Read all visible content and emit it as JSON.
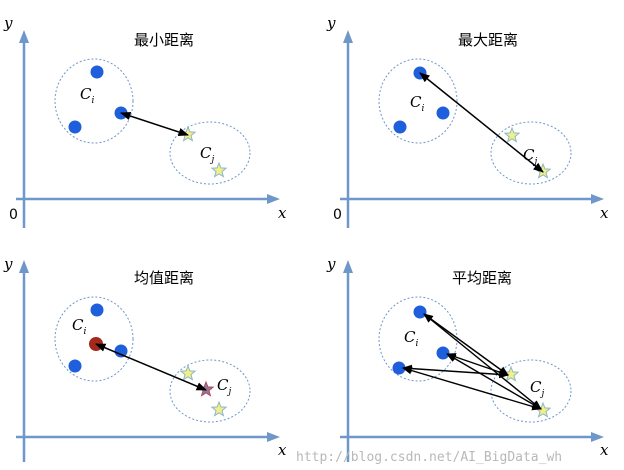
{
  "colors": {
    "axis": "#6f97c9",
    "cluster_outline": "#6f97c9",
    "point_fill": "#1f5fdc",
    "mean_fill": "#a4281b",
    "star_fill": "#f1ef86",
    "star_stroke": "#8db6c8",
    "mean_star_fill": "#8f7a9a",
    "arrow": "#000000"
  },
  "axis_labels": {
    "y": "y",
    "x": "x",
    "origin": "0"
  },
  "cluster_labels": {
    "ci_base": "C",
    "ci_sub": "i",
    "cj_base": "C",
    "cj_sub": "j"
  },
  "panels": [
    {
      "id": "min",
      "title": "最小距离"
    },
    {
      "id": "max",
      "title": "最大距离"
    },
    {
      "id": "mean",
      "title": "均值距离"
    },
    {
      "id": "avg",
      "title": "平均距离"
    }
  ],
  "watermark": "http://blog.csdn.net/AI_BigData_wh"
}
